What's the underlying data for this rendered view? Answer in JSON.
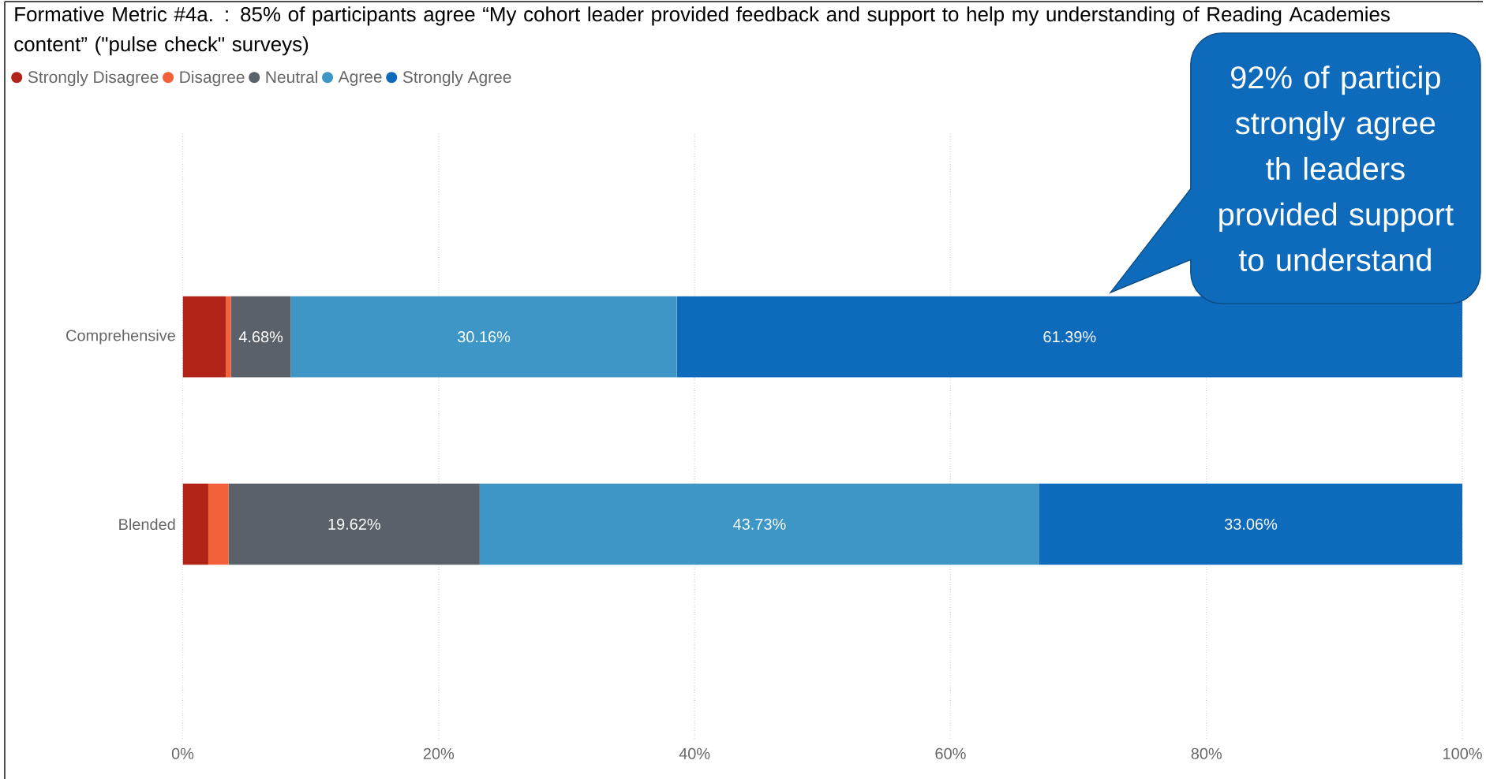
{
  "chart_data": {
    "type": "bar",
    "orientation": "horizontal",
    "stacked": true,
    "title": "Formative Metric #4a. : 85% of participants agree “My cohort leader provided feedback and support to help my understanding of Reading Academies content” (\"pulse check\" surveys)",
    "categories": [
      "Comprehensive",
      "Blended"
    ],
    "series": [
      {
        "name": "Strongly Disagree",
        "color": "#b22418",
        "values": [
          3.37,
          2.0
        ],
        "value_labels": [
          null,
          null
        ]
      },
      {
        "name": "Disagree",
        "color": "#f1623a",
        "values": [
          0.4,
          1.59
        ],
        "value_labels": [
          null,
          null
        ]
      },
      {
        "name": "Neutral",
        "color": "#5b6168",
        "values": [
          4.68,
          19.62
        ],
        "value_labels": [
          "4.68%",
          "19.62%"
        ]
      },
      {
        "name": "Agree",
        "color": "#3d96c6",
        "values": [
          30.16,
          43.73
        ],
        "value_labels": [
          "30.16%",
          "43.73%"
        ]
      },
      {
        "name": "Strongly Agree",
        "color": "#0e6aba",
        "values": [
          61.39,
          33.06
        ],
        "value_labels": [
          "61.39%",
          "33.06%"
        ]
      }
    ],
    "xlim": [
      0,
      100
    ],
    "xticks": [
      {
        "value": 0,
        "label": "0%"
      },
      {
        "value": 20,
        "label": "20%"
      },
      {
        "value": 40,
        "label": "40%"
      },
      {
        "value": 60,
        "label": "60%"
      },
      {
        "value": 80,
        "label": "80%"
      },
      {
        "value": 100,
        "label": "100%"
      }
    ],
    "grid": "x",
    "legend": "top left",
    "annotations": [
      "92% of particip strongly agree th leaders provided support to understand"
    ]
  }
}
